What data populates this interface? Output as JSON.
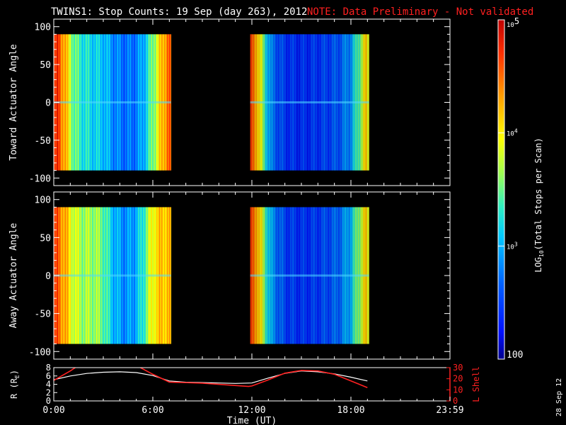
{
  "title": "TWINS1: Stop Counts: 19 Sep (day 263), 2012",
  "note": "NOTE: Data Preliminary - Not validated",
  "date_stamp": "28 Sep 12",
  "colors": {
    "note": "#ff2020",
    "rl_axis": "#ff2020",
    "r_line": "#ffffff",
    "l_line": "#ff2020"
  },
  "chart_data": [
    {
      "type": "heatmap",
      "ylabel": "Toward Actuator Angle",
      "ylim": [
        -110,
        110
      ],
      "yticks": [
        100,
        50,
        0,
        -50,
        -100
      ],
      "angle_range": [
        -90,
        90
      ],
      "xlim": [
        0,
        24
      ],
      "data_blocks": [
        [
          0,
          7.1
        ],
        [
          11.9,
          19.1
        ]
      ],
      "profile": {
        "hours": [
          0,
          0.3,
          0.8,
          1.2,
          1.8,
          2.5,
          3.0,
          3.6,
          4.2,
          4.8,
          5.3,
          5.8,
          6.2,
          6.6,
          6.9,
          7.1,
          11.9,
          12.3,
          12.7,
          13.2,
          14.0,
          15.0,
          16.0,
          16.8,
          17.4,
          18.0,
          18.5,
          18.9,
          19.1
        ],
        "levels": [
          0.85,
          0.9,
          0.7,
          0.5,
          0.42,
          0.38,
          0.36,
          0.28,
          0.24,
          0.24,
          0.3,
          0.45,
          0.6,
          0.75,
          0.85,
          0.8,
          0.85,
          0.78,
          0.5,
          0.25,
          0.15,
          0.13,
          0.15,
          0.18,
          0.22,
          0.3,
          0.5,
          0.7,
          0.6
        ]
      }
    },
    {
      "type": "heatmap",
      "ylabel": "Away Actuator Angle",
      "ylim": [
        -110,
        110
      ],
      "yticks": [
        100,
        50,
        0,
        -50,
        -100
      ],
      "angle_range": [
        -90,
        90
      ],
      "xlim": [
        0,
        24
      ],
      "data_blocks": [
        [
          0,
          7.1
        ],
        [
          11.9,
          19.1
        ]
      ],
      "profile": {
        "hours": [
          0,
          0.3,
          0.8,
          1.2,
          1.8,
          2.5,
          3.0,
          3.6,
          4.2,
          4.8,
          5.3,
          5.8,
          6.2,
          6.6,
          6.9,
          7.1,
          11.9,
          12.3,
          12.7,
          13.2,
          14.0,
          15.0,
          16.0,
          16.8,
          17.4,
          18.0,
          18.5,
          18.9,
          19.1
        ],
        "levels": [
          0.85,
          0.85,
          0.72,
          0.6,
          0.55,
          0.55,
          0.5,
          0.35,
          0.28,
          0.3,
          0.4,
          0.6,
          0.7,
          0.72,
          0.75,
          0.7,
          0.85,
          0.8,
          0.55,
          0.3,
          0.17,
          0.14,
          0.16,
          0.2,
          0.25,
          0.35,
          0.55,
          0.7,
          0.6
        ]
      }
    },
    {
      "type": "line",
      "xlabel": "Time (UT)",
      "xlim": [
        0,
        24
      ],
      "xticks": [
        "0:00",
        "6:00",
        "12:00",
        "18:00",
        "23:59"
      ],
      "xtick_hours": [
        0,
        6,
        12,
        18,
        24
      ],
      "left_axis": {
        "label_main": "R (R",
        "label_sub": "E",
        "label_end": ")",
        "ylim": [
          0,
          8
        ],
        "yticks": [
          0,
          2,
          4,
          6,
          8
        ]
      },
      "right_axis": {
        "label": "L Shell",
        "ylim": [
          0,
          30
        ],
        "yticks": [
          0,
          10,
          20,
          30
        ]
      },
      "series": [
        {
          "axis": "left",
          "x": [
            0,
            1,
            2,
            3,
            4,
            5,
            6,
            7,
            8,
            9,
            10,
            11,
            12,
            13,
            14,
            15,
            16,
            17,
            18,
            19
          ],
          "values": [
            5.1,
            6.0,
            6.6,
            6.9,
            7.0,
            6.8,
            6.1,
            4.8,
            4.5,
            4.4,
            4.3,
            4.2,
            4.3,
            5.5,
            6.6,
            7.2,
            7.0,
            6.5,
            5.7,
            4.8
          ]
        },
        {
          "axis": "right",
          "x": [
            0,
            1,
            1.5,
            2,
            5,
            6,
            7,
            9,
            11.8,
            12,
            13,
            14,
            15,
            16,
            17,
            18,
            19
          ],
          "values": [
            18.5,
            27,
            32,
            32,
            32,
            24,
            17,
            16,
            13,
            13.5,
            19,
            25,
            27.5,
            27,
            24,
            18,
            12
          ]
        }
      ]
    }
  ],
  "colorbar": {
    "label_main": "LOG",
    "label_sub": "10",
    "label_rest": "(Total Stops per Scan)",
    "range": [
      100,
      100000
    ],
    "ticks": [
      {
        "value": 100000,
        "base": "10",
        "exp": "5"
      },
      {
        "value": 10000,
        "base": "10",
        "exp": "4"
      },
      {
        "value": 1000,
        "base": "10",
        "exp": "3"
      },
      {
        "value": 100,
        "text": "100"
      }
    ]
  }
}
